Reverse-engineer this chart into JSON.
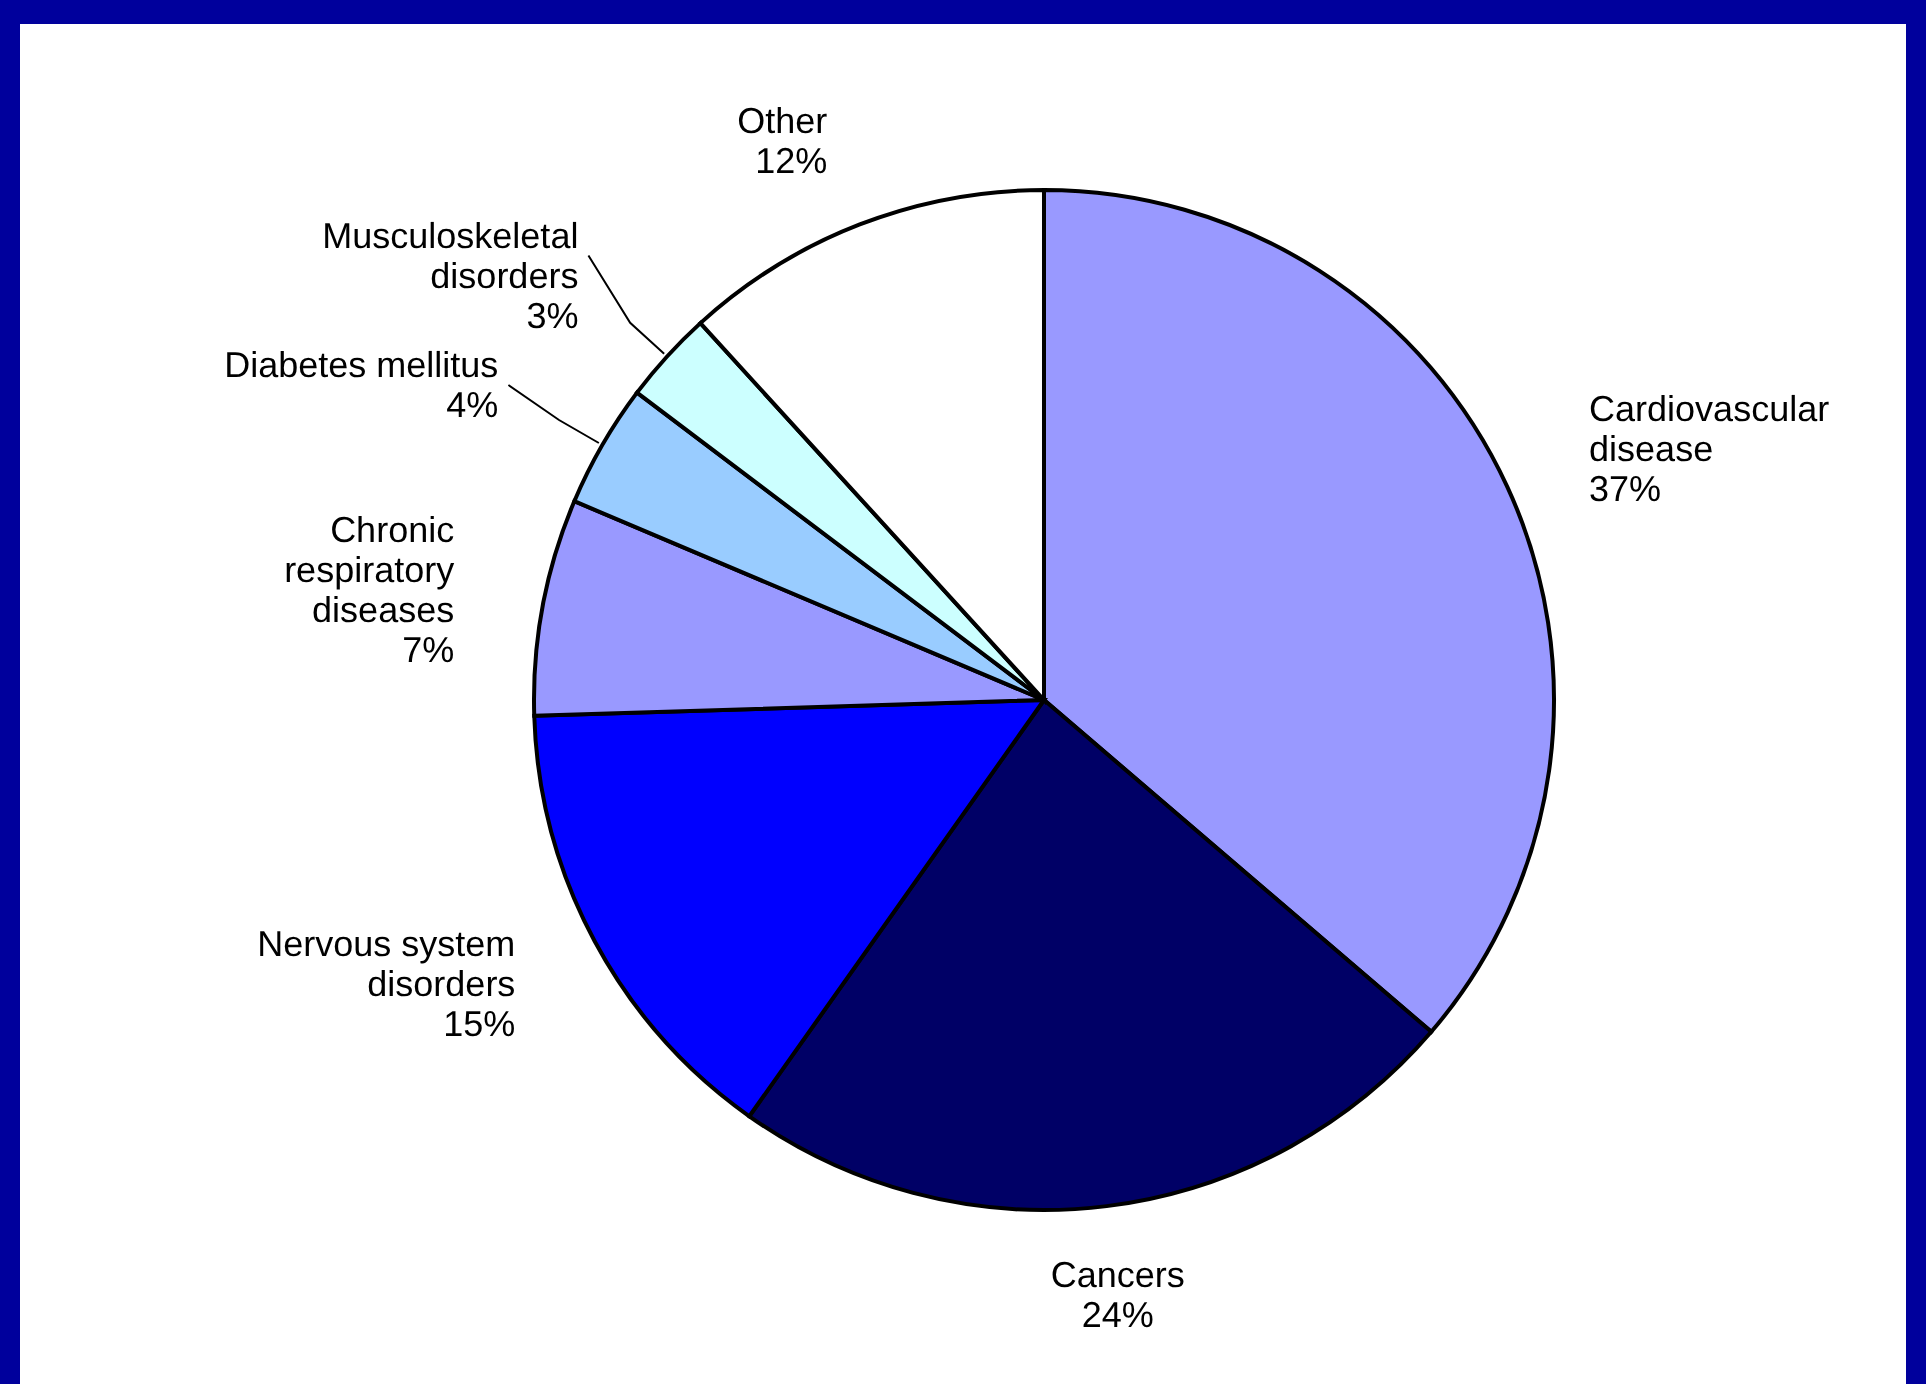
{
  "chart_data": {
    "type": "pie",
    "categories": [
      "Cardiovascular disease",
      "Cancers",
      "Nervous system disorders",
      "Chronic respiratory diseases",
      "Diabetes mellitus",
      "Musculoskeletal disorders",
      "Other"
    ],
    "values": [
      37,
      24,
      15,
      7,
      4,
      3,
      12
    ],
    "value_labels": [
      "37%",
      "24%",
      "15%",
      "7%",
      "4%",
      "3%",
      "12%"
    ],
    "colors": [
      "#9999ff",
      "#000066",
      "#0000ff",
      "#9999ff",
      "#99ccff",
      "#ccffff",
      "#ffffff"
    ],
    "legend": false
  }
}
